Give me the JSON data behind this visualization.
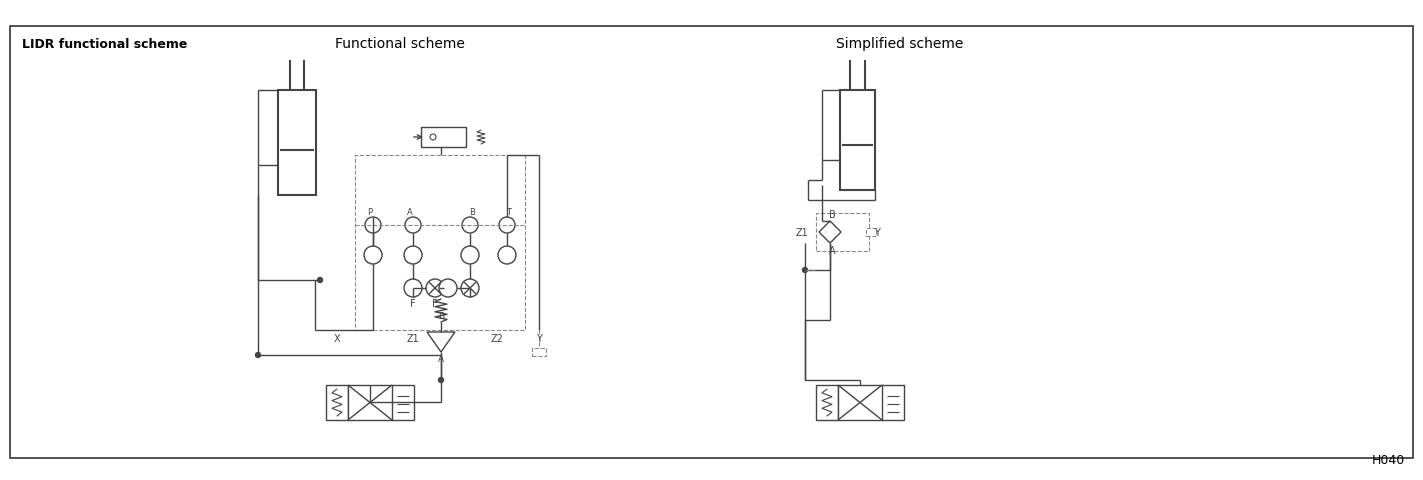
{
  "title": "LIDR functional scheme",
  "subtitle_left": "Functional scheme",
  "subtitle_right": "Simplified scheme",
  "footer": "H040",
  "bg_color": "#ffffff",
  "lc": "#444444",
  "lc_gray": "#888888",
  "fig_width": 14.23,
  "fig_height": 4.81,
  "dpi": 100,
  "border_lw": 1.2,
  "line_lw": 1.0,
  "thick_lw": 1.5
}
